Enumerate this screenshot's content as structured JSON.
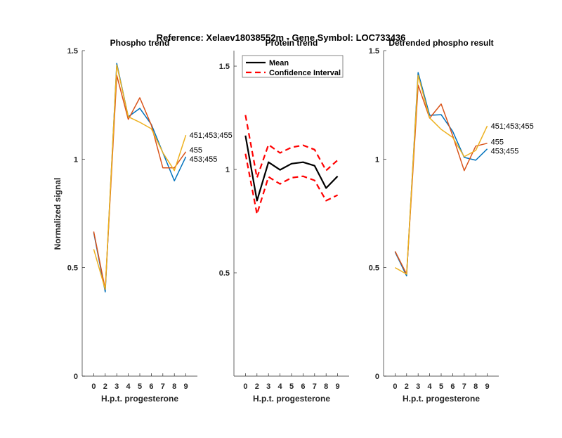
{
  "title": "Reference:  Xelaev18038552m - Gene Symbol:  LOC733436",
  "colors": {
    "series1": "#0072BD",
    "series2": "#D95319",
    "series3": "#EDB120",
    "mean": "#000000",
    "ci": "#FF0000",
    "axis": "#262626"
  },
  "chart_data": [
    {
      "type": "line",
      "title": "Phospho trend",
      "xlabel": "H.p.t. progesterone",
      "ylabel": "Normalized signal",
      "categories": [
        "0",
        "2",
        "3",
        "4",
        "5",
        "6",
        "7",
        "8",
        "9"
      ],
      "ylim": [
        0,
        1.5
      ],
      "yticks": [
        "0",
        "0.5",
        "1",
        "1.5"
      ],
      "ytick_values": [
        0,
        0.5,
        1,
        1.5
      ],
      "series": [
        {
          "name": "453;455",
          "color": "#0072BD",
          "values": [
            0.662,
            0.388,
            1.441,
            1.195,
            1.234,
            1.16,
            1.03,
            0.9,
            1.011
          ]
        },
        {
          "name": "455",
          "color": "#D95319",
          "values": [
            0.666,
            0.4,
            1.386,
            1.183,
            1.283,
            1.157,
            0.96,
            0.96,
            1.034
          ]
        },
        {
          "name": "451;453;455",
          "color": "#EDB120",
          "values": [
            0.585,
            0.4,
            1.434,
            1.195,
            1.17,
            1.14,
            1.03,
            0.947,
            1.111
          ]
        }
      ]
    },
    {
      "type": "line",
      "title": "Protein trend",
      "xlabel": "H.p.t. progesterone",
      "categories": [
        "0",
        "2",
        "3",
        "4",
        "5",
        "6",
        "7",
        "8",
        "9"
      ],
      "ylim": [
        0,
        1.575
      ],
      "yticks": [
        "0.5",
        "1",
        "1.5"
      ],
      "ytick_values": [
        0.5,
        1,
        1.5
      ],
      "legend": {
        "position": "top-left",
        "entries": [
          "Mean",
          "Confidence Interval"
        ]
      },
      "series": [
        {
          "name": "Mean",
          "color": "#000000",
          "style": "solid",
          "values": [
            1.164,
            0.849,
            1.035,
            0.998,
            1.028,
            1.035,
            1.018,
            0.91,
            0.967
          ]
        },
        {
          "name": "Confidence Interval",
          "color": "#FF0000",
          "style": "dashed",
          "values": [
            1.263,
            0.96,
            1.12,
            1.08,
            1.107,
            1.117,
            1.096,
            0.995,
            1.045
          ]
        },
        {
          "name": "Confidence Interval",
          "color": "#FF0000",
          "style": "dashed",
          "values": [
            1.076,
            0.784,
            0.964,
            0.93,
            0.96,
            0.967,
            0.947,
            0.849,
            0.876
          ]
        }
      ]
    },
    {
      "type": "line",
      "title": "Detrended phospho result",
      "xlabel": "H.p.t. progesterone",
      "categories": [
        "0",
        "2",
        "3",
        "4",
        "5",
        "6",
        "7",
        "8",
        "9"
      ],
      "ylim": [
        0,
        1.5
      ],
      "yticks": [
        "0",
        "0.5",
        "1",
        "1.5"
      ],
      "ytick_values": [
        0,
        0.5,
        1,
        1.5
      ],
      "series": [
        {
          "name": "453;455",
          "color": "#0072BD",
          "values": [
            0.572,
            0.462,
            1.399,
            1.202,
            1.205,
            1.128,
            1.008,
            0.995,
            1.047
          ]
        },
        {
          "name": "455",
          "color": "#D95319",
          "values": [
            0.575,
            0.47,
            1.341,
            1.189,
            1.254,
            1.108,
            0.947,
            1.06,
            1.073
          ]
        },
        {
          "name": "451;453;455",
          "color": "#EDB120",
          "values": [
            0.5,
            0.47,
            1.386,
            1.19,
            1.137,
            1.1,
            1.011,
            1.04,
            1.153
          ]
        }
      ]
    }
  ]
}
